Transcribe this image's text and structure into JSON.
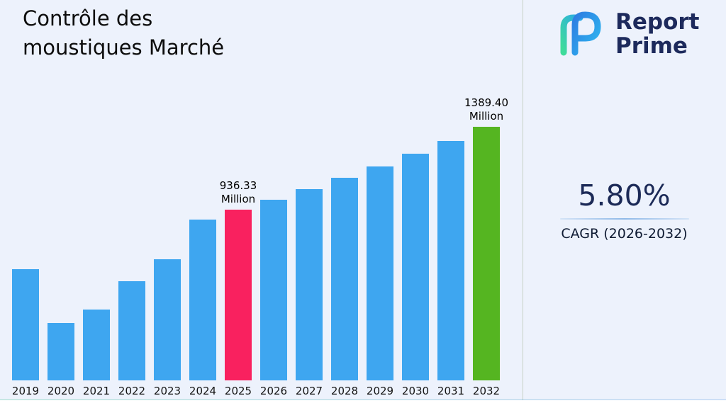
{
  "header": {
    "title_line1": "Contrôle des",
    "title_line2": "moustiques Marché"
  },
  "brand": {
    "name_line1": "Report",
    "name_line2": "Prime"
  },
  "stats": {
    "cagr_value": "5.80%",
    "cagr_label": "CAGR (2026-2032)"
  },
  "chart_data": {
    "type": "bar",
    "title": "Contrôle des moustiques Marché",
    "categories": [
      "2019",
      "2020",
      "2021",
      "2022",
      "2023",
      "2024",
      "2025",
      "2026",
      "2027",
      "2028",
      "2029",
      "2030",
      "2031",
      "2032"
    ],
    "values": [
      610,
      315,
      390,
      545,
      665,
      880,
      936.33,
      990.64,
      1048.1,
      1108.9,
      1173.2,
      1241.3,
      1313.2,
      1389.4
    ],
    "unit": "Million",
    "xlabel": "",
    "ylabel": "",
    "ylim": [
      0,
      1389.4
    ],
    "grid": false,
    "legend": "none",
    "bar_color_default": "#3EA6F0",
    "highlight_colors": {
      "2025": "#F9215F",
      "2032": "#55B521"
    },
    "data_labels": [
      {
        "category": "2025",
        "lines": [
          "936.33",
          "Million"
        ]
      },
      {
        "category": "2032",
        "lines": [
          "1389.40",
          "Million"
        ]
      }
    ]
  },
  "colors": {
    "background": "#edf2fc",
    "navy": "#1d2a5c",
    "divider": "#c7d1c7"
  }
}
